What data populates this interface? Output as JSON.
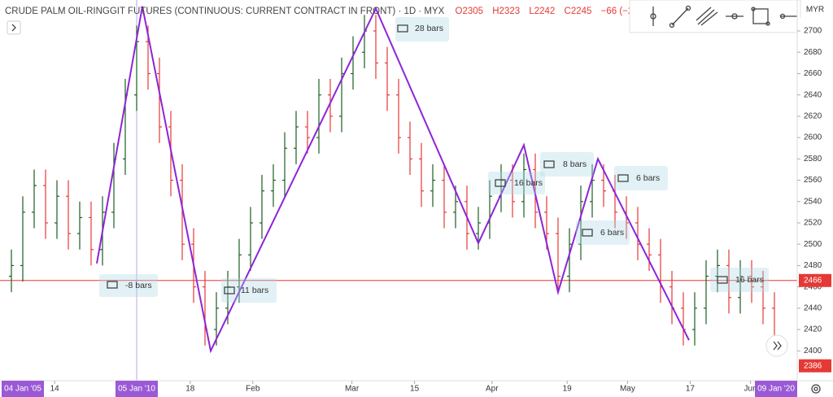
{
  "chart_data": {
    "type": "ohlc",
    "title": "CRUDE PALM OIL-RINGGIT FUTURES (CONTINUOUS: CURRENT CONTRACT IN FRONT) · 1D · MYX",
    "ohlc_legend": [
      "O2305",
      "H2323",
      "L2242",
      "C2245",
      "−66 (−2.8"
    ],
    "currency": "MYR",
    "x": [
      0,
      1,
      2,
      3,
      4,
      5,
      6,
      7,
      8,
      9,
      10,
      11,
      12,
      13,
      14,
      15,
      16,
      17,
      18,
      19,
      20,
      21,
      22,
      23,
      24,
      25,
      26,
      27,
      28,
      29,
      30,
      31,
      32,
      33,
      34,
      35,
      36,
      37,
      38,
      39,
      40,
      41,
      42,
      43,
      44,
      45,
      46,
      47,
      48,
      49,
      50,
      51,
      52,
      53,
      54,
      55,
      56,
      57,
      58,
      59,
      60,
      61,
      62,
      63,
      64,
      65,
      66,
      67
    ],
    "series": [
      {
        "name": "open",
        "values": [
          2470,
          2480,
          2530,
          2555,
          2520,
          2545,
          2510,
          2525,
          2495,
          2530,
          2580,
          2640,
          2690,
          2660,
          2610,
          2560,
          2500,
          2460,
          2420,
          2440,
          2460,
          2490,
          2520,
          2550,
          2560,
          2590,
          2610,
          2600,
          2640,
          2620,
          2660,
          2680,
          2700,
          2670,
          2640,
          2600,
          2580,
          2550,
          2560,
          2530,
          2540,
          2510,
          2520,
          2545,
          2560,
          2540,
          2570,
          2530,
          2510,
          2470,
          2500,
          2540,
          2560,
          2550,
          2530,
          2520,
          2500,
          2490,
          2460,
          2440,
          2420,
          2440,
          2470,
          2480,
          2450,
          2470,
          2460,
          2440
        ]
      },
      {
        "name": "high",
        "values": [
          2495,
          2545,
          2570,
          2570,
          2560,
          2560,
          2540,
          2540,
          2545,
          2595,
          2655,
          2705,
          2705,
          2675,
          2625,
          2575,
          2515,
          2475,
          2455,
          2475,
          2505,
          2535,
          2565,
          2575,
          2605,
          2625,
          2625,
          2655,
          2655,
          2675,
          2695,
          2715,
          2715,
          2685,
          2655,
          2615,
          2595,
          2575,
          2575,
          2555,
          2555,
          2535,
          2560,
          2575,
          2575,
          2585,
          2585,
          2545,
          2525,
          2515,
          2555,
          2575,
          2575,
          2565,
          2545,
          2535,
          2515,
          2505,
          2475,
          2455,
          2455,
          2485,
          2495,
          2495,
          2485,
          2485,
          2475,
          2455
        ]
      },
      {
        "name": "low",
        "values": [
          2455,
          2465,
          2515,
          2505,
          2505,
          2495,
          2495,
          2480,
          2480,
          2515,
          2565,
          2625,
          2645,
          2595,
          2545,
          2485,
          2445,
          2405,
          2405,
          2425,
          2445,
          2475,
          2505,
          2535,
          2545,
          2575,
          2585,
          2585,
          2605,
          2605,
          2645,
          2665,
          2655,
          2625,
          2585,
          2565,
          2535,
          2535,
          2515,
          2515,
          2495,
          2495,
          2505,
          2530,
          2525,
          2525,
          2515,
          2495,
          2455,
          2455,
          2485,
          2525,
          2535,
          2515,
          2505,
          2485,
          2475,
          2445,
          2425,
          2405,
          2405,
          2425,
          2455,
          2435,
          2435,
          2445,
          2425,
          2395
        ]
      },
      {
        "name": "close",
        "values": [
          2480,
          2530,
          2555,
          2520,
          2545,
          2510,
          2525,
          2495,
          2530,
          2580,
          2640,
          2690,
          2660,
          2610,
          2560,
          2500,
          2460,
          2420,
          2440,
          2460,
          2490,
          2520,
          2550,
          2560,
          2590,
          2610,
          2600,
          2640,
          2620,
          2660,
          2680,
          2700,
          2670,
          2640,
          2600,
          2580,
          2550,
          2560,
          2530,
          2540,
          2510,
          2520,
          2545,
          2560,
          2540,
          2570,
          2530,
          2510,
          2470,
          2500,
          2540,
          2560,
          2550,
          2530,
          2520,
          2500,
          2490,
          2460,
          2440,
          2420,
          2440,
          2470,
          2480,
          2450,
          2470,
          2460,
          2440,
          2410
        ]
      }
    ],
    "up_color": "#1b5e20",
    "down_color": "#e53935",
    "zigzag": {
      "color": "#8e24d8",
      "x": [
        7.5,
        11.5,
        17.5,
        32,
        41,
        45,
        48,
        51.5,
        59.5
      ],
      "values": [
        2482,
        2723,
        2400,
        2721,
        2501,
        2593,
        2455,
        2580,
        2410
      ]
    },
    "measure_labels": [
      "-8 bars",
      "11 bars",
      "28 bars",
      "16 bars",
      "8 bars",
      "6 bars",
      "6 bars",
      "16 bars"
    ],
    "xlim": [
      -1,
      69
    ],
    "ylim": [
      2372,
      2729
    ],
    "yticks": [
      2400,
      2420,
      2440,
      2460,
      2480,
      2500,
      2520,
      2540,
      2560,
      2580,
      2600,
      2620,
      2640,
      2660,
      2680,
      2700
    ],
    "xticks": [
      {
        "value": 3.8,
        "label": "14"
      },
      {
        "value": 15.7,
        "label": "18"
      },
      {
        "value": 21.2,
        "label": "Feb"
      },
      {
        "value": 29.9,
        "label": "Mar"
      },
      {
        "value": 35.4,
        "label": "15"
      },
      {
        "value": 42.2,
        "label": "Apr"
      },
      {
        "value": 48.8,
        "label": "19"
      },
      {
        "value": 54.1,
        "label": "May"
      },
      {
        "value": 59.6,
        "label": "17"
      },
      {
        "value": 64.9,
        "label": "Jun"
      }
    ],
    "range_labels": [
      {
        "value": 1,
        "label": "04 Jan '05"
      },
      {
        "value": 11,
        "label": "05 Jan '10"
      },
      {
        "value": 67.4,
        "label": "09 Jan '20"
      }
    ],
    "cursor_x": 11,
    "price_line": 2466,
    "price_labels": [
      2466,
      2386
    ]
  }
}
